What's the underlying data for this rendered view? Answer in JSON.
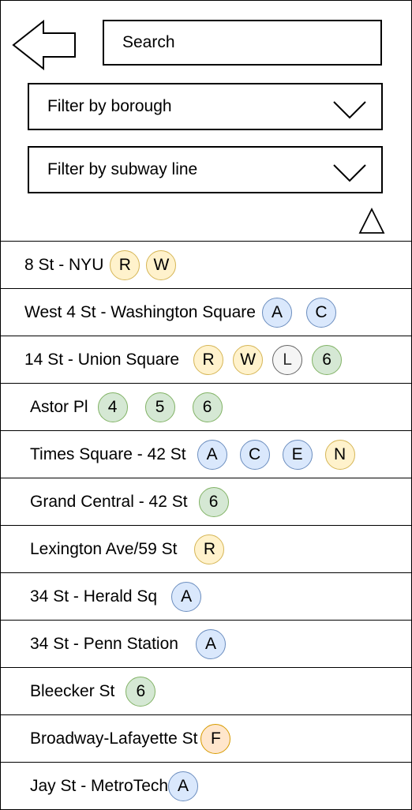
{
  "search": {
    "placeholder": "Search",
    "value": ""
  },
  "filters": {
    "borough": {
      "label": "Filter by borough"
    },
    "subway_line": {
      "label": "Filter by subway line"
    }
  },
  "colors": {
    "yellow": "#fff2cc",
    "blue": "#dae8fc",
    "green": "#d5e8d4",
    "gray": "#f5f5f5",
    "orange": "#ffe6cc"
  },
  "stations": [
    {
      "name": "8 St - NYU",
      "lines": [
        {
          "label": "R",
          "color": "yellow"
        },
        {
          "label": "W",
          "color": "yellow"
        }
      ]
    },
    {
      "name": "West 4 St - Washington Square",
      "lines": [
        {
          "label": "A",
          "color": "blue"
        },
        {
          "label": "C",
          "color": "blue"
        }
      ]
    },
    {
      "name": "14 St - Union Square",
      "lines": [
        {
          "label": "R",
          "color": "yellow"
        },
        {
          "label": "W",
          "color": "yellow"
        },
        {
          "label": "L",
          "color": "gray"
        },
        {
          "label": "6",
          "color": "green"
        }
      ]
    },
    {
      "name": "Astor Pl",
      "lines": [
        {
          "label": "4",
          "color": "green"
        },
        {
          "label": "5",
          "color": "green"
        },
        {
          "label": "6",
          "color": "green"
        }
      ]
    },
    {
      "name": "Times Square - 42 St",
      "lines": [
        {
          "label": "A",
          "color": "blue"
        },
        {
          "label": "C",
          "color": "blue"
        },
        {
          "label": "E",
          "color": "blue"
        },
        {
          "label": "N",
          "color": "yellow"
        }
      ]
    },
    {
      "name": "Grand Central - 42 St",
      "lines": [
        {
          "label": "6",
          "color": "green"
        }
      ]
    },
    {
      "name": "Lexington Ave/59 St",
      "lines": [
        {
          "label": "R",
          "color": "yellow"
        }
      ]
    },
    {
      "name": "34 St - Herald Sq",
      "lines": [
        {
          "label": "A",
          "color": "blue"
        }
      ]
    },
    {
      "name": "34 St - Penn Station",
      "lines": [
        {
          "label": "A",
          "color": "blue"
        }
      ]
    },
    {
      "name": "Bleecker St",
      "lines": [
        {
          "label": "6",
          "color": "green"
        }
      ]
    },
    {
      "name": "Broadway-Lafayette St",
      "lines": [
        {
          "label": "F",
          "color": "orange"
        }
      ]
    },
    {
      "name": "Jay St - MetroTech",
      "lines": [
        {
          "label": "A",
          "color": "blue"
        }
      ]
    }
  ]
}
